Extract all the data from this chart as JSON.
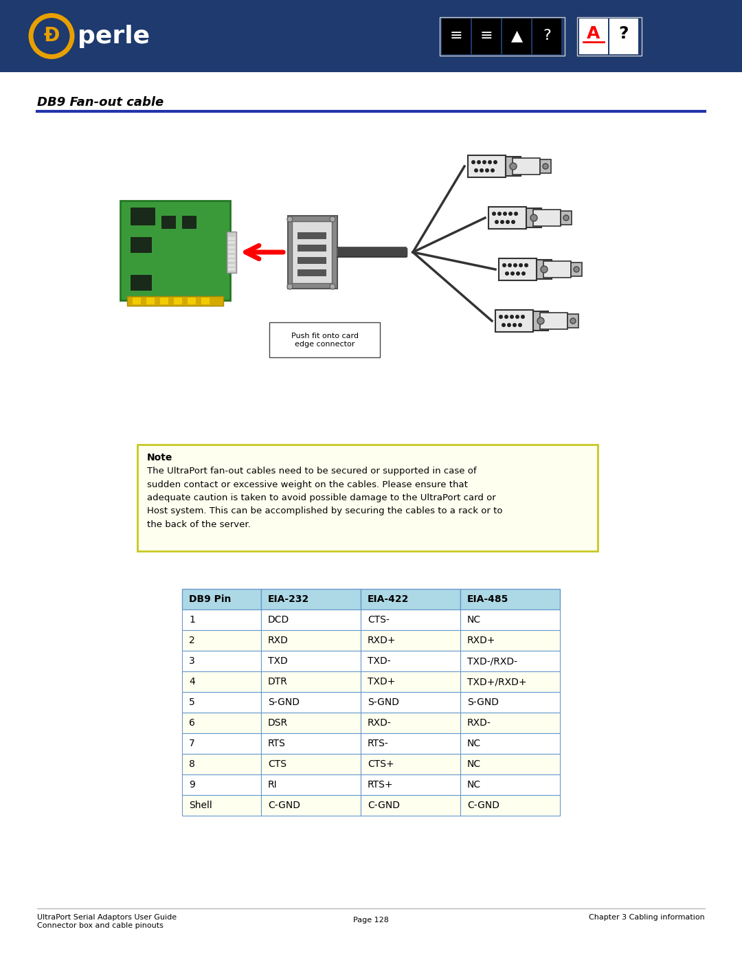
{
  "header_bg_color": "#1e3a6e",
  "page_bg_color": "#ffffff",
  "title_text": "DB9 Fan-out cable",
  "title_color": "#000000",
  "title_fontsize": 13,
  "divider_color": "#2233aa",
  "note_bg_color": "#fffff0",
  "note_border_color": "#c8c820",
  "note_title": "Note",
  "note_body": "The UltraPort fan-out cables need to be secured or supported in case of\nsudden contact or excessive weight on the cables. Please ensure that\nadequate caution is taken to avoid possible damage to the UltraPort card or\nHost system. This can be accomplished by securing the cables to a rack or to\nthe back of the server.",
  "note_fontsize": 9.5,
  "table_header": [
    "DB9 Pin",
    "EIA-232",
    "EIA-422",
    "EIA-485"
  ],
  "table_header_bg": "#add8e6",
  "table_header_color": "#000000",
  "table_row_bg_odd": "#ffffff",
  "table_row_bg_even": "#fffff0",
  "table_last_row_bg": "#fffff0",
  "table_border_color": "#6699cc",
  "table_text_color": "#000000",
  "table_fontsize": 10,
  "table_rows": [
    [
      "1",
      "DCD",
      "CTS-",
      "NC"
    ],
    [
      "2",
      "RXD",
      "RXD+",
      "RXD+"
    ],
    [
      "3",
      "TXD",
      "TXD-",
      "TXD-/RXD-"
    ],
    [
      "4",
      "DTR",
      "TXD+",
      "TXD+/RXD+"
    ],
    [
      "5",
      "S-GND",
      "S-GND",
      "S-GND"
    ],
    [
      "6",
      "DSR",
      "RXD-",
      "RXD-"
    ],
    [
      "7",
      "RTS",
      "RTS-",
      "NC"
    ],
    [
      "8",
      "CTS",
      "CTS+",
      "NC"
    ],
    [
      "9",
      "RI",
      "RTS+",
      "NC"
    ],
    [
      "Shell",
      "C-GND",
      "C-GND",
      "C-GND"
    ]
  ],
  "footer_left1": "UltraPort Serial Adaptors User Guide",
  "footer_left2": "Connector box and cable pinouts",
  "footer_right": "Chapter 3 Cabling information",
  "footer_center": "Page 128",
  "footer_fontsize": 8
}
